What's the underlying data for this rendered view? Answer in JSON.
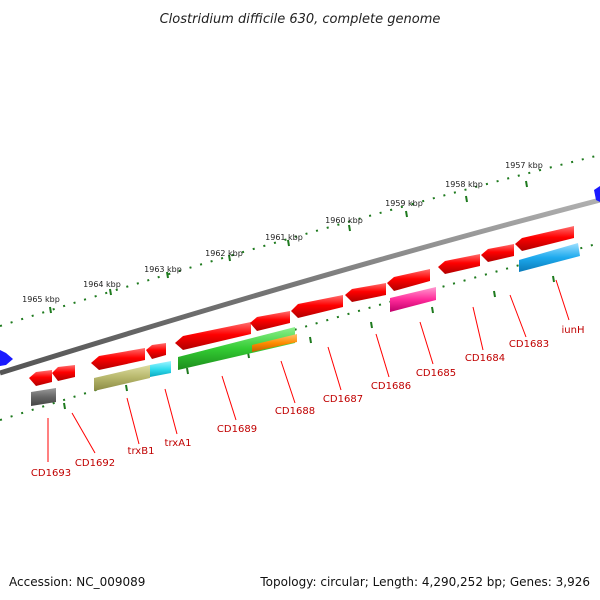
{
  "title": "Clostridium difficile 630, complete genome",
  "footer": {
    "accession": "Accession: NC_009089",
    "topology": "Topology: circular; Length: 4,290,252 bp; Genes: 3,926"
  },
  "colors": {
    "backbone": "#808080",
    "ticks": "#1e7a1e",
    "label": "#c00000",
    "end_arrow": "#1a1aff"
  },
  "kbp_ticks": [
    "1965 kbp",
    "1964 kbp",
    "1963 kbp",
    "1962 kbp",
    "1961 kbp",
    "1960 kbp",
    "1959 kbp",
    "1958 kbp",
    "1957 kbp"
  ],
  "gene_labels": [
    "CD1693",
    "CD1692",
    "trxB1",
    "trxA1",
    "CD1689",
    "CD1688",
    "CD1687",
    "CD1686",
    "CD1685",
    "CD1684",
    "CD1683",
    "iunH"
  ],
  "features": [
    {
      "name": "CD1693",
      "strand": "reverse",
      "color": "#ff0000",
      "subfeature_color": "#666666"
    },
    {
      "name": "CD1692",
      "strand": "reverse",
      "color": "#ff0000"
    },
    {
      "name": "trxB1",
      "strand": "reverse",
      "color": "#ff0000",
      "subfeature_color": "#b5b56a"
    },
    {
      "name": "trxA1",
      "strand": "reverse",
      "color": "#ff0000",
      "subfeature_color": "#33ddee"
    },
    {
      "name": "CD1689",
      "strand": "reverse",
      "color": "#ff0000",
      "subfeature_color": "#33cc33"
    },
    {
      "name": "CD1688",
      "strand": "reverse",
      "color": "#ff0000",
      "subfeature_color": "#ff8c00"
    },
    {
      "name": "CD1687",
      "strand": "reverse",
      "color": "#ff0000"
    },
    {
      "name": "CD1686",
      "strand": "reverse",
      "color": "#ff0000"
    },
    {
      "name": "CD1685",
      "strand": "reverse",
      "color": "#ff0000",
      "subfeature_color": "#ff2a9a"
    },
    {
      "name": "CD1684",
      "strand": "reverse",
      "color": "#ff0000"
    },
    {
      "name": "CD1683",
      "strand": "reverse",
      "color": "#ff0000"
    },
    {
      "name": "iunH",
      "strand": "reverse",
      "color": "#ff0000",
      "subfeature_color": "#1eaaee"
    }
  ]
}
